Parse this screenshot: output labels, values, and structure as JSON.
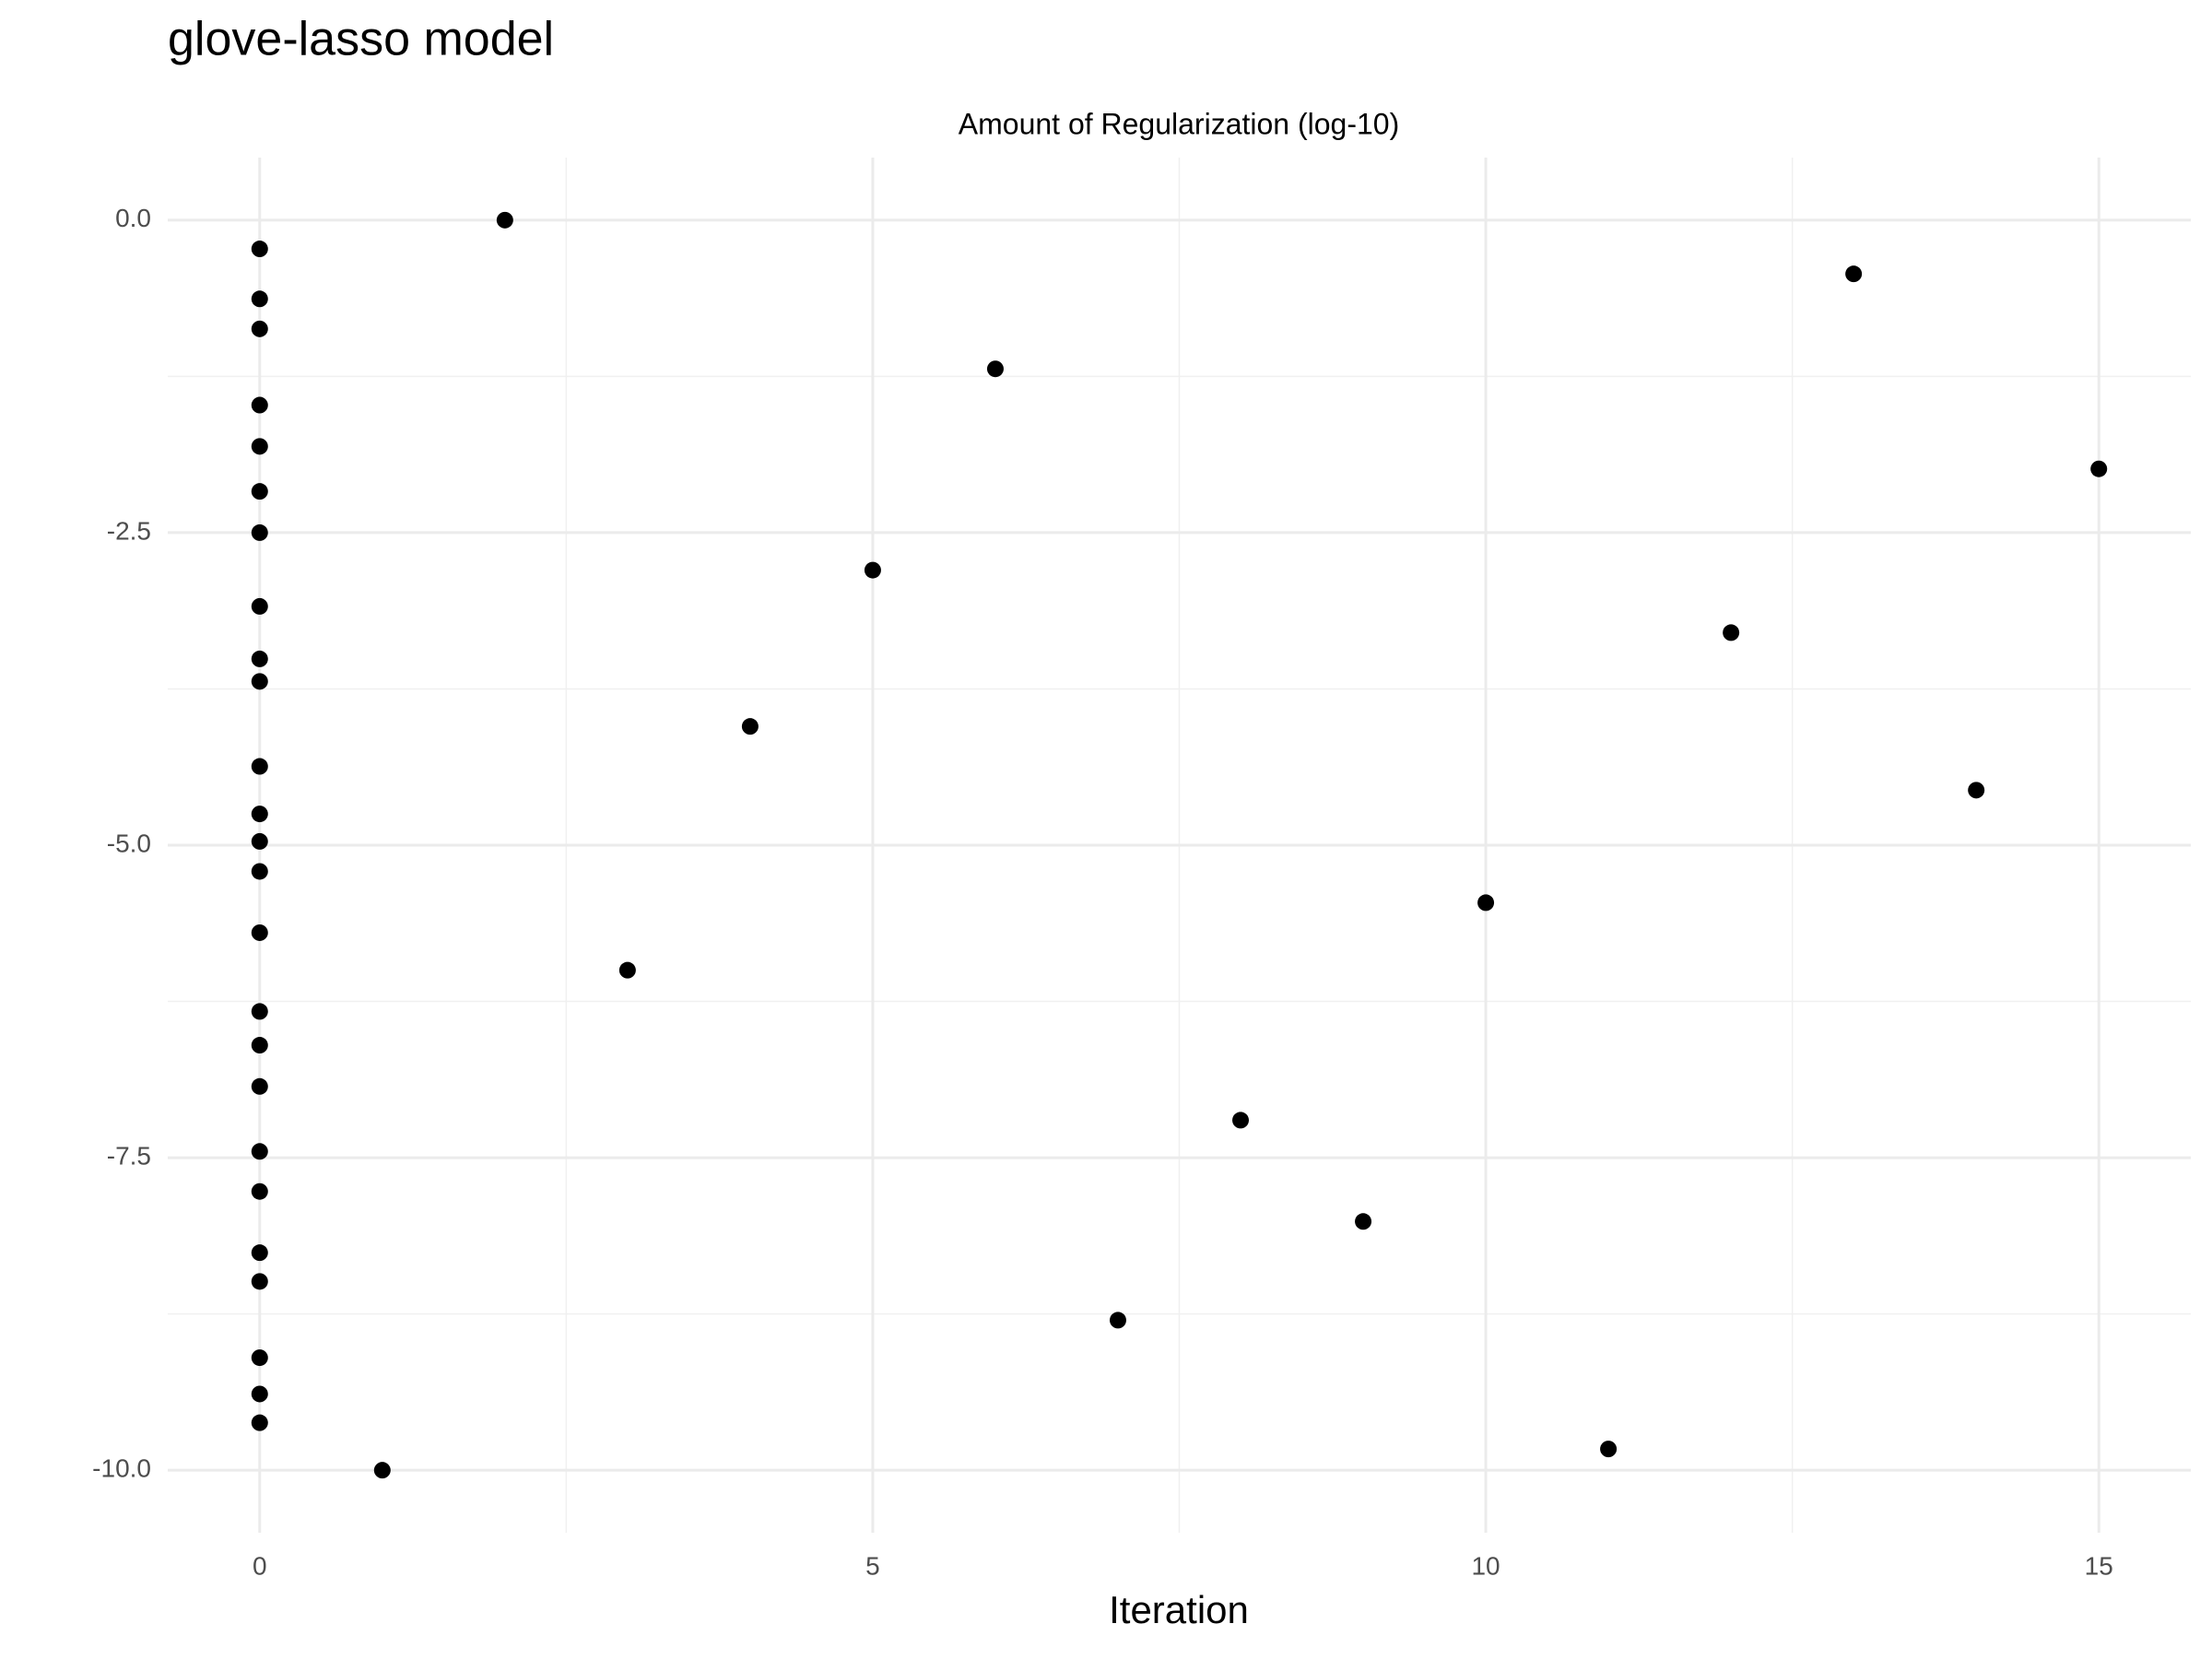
{
  "chart_data": {
    "type": "scatter",
    "title": "glove-lasso model",
    "subtitle": "Amount of Regularization (log-10)",
    "x_label": "Iteration",
    "x": [
      0,
      0,
      0,
      0,
      0,
      0,
      0,
      0,
      0,
      0,
      0,
      0,
      0,
      0,
      0,
      0,
      0,
      0,
      0,
      0,
      0,
      0,
      0,
      0,
      0,
      1,
      2,
      3,
      4,
      5,
      6,
      7,
      8,
      9,
      10,
      11,
      12,
      13,
      14,
      15
    ],
    "values": [
      -0.23,
      -0.63,
      -0.87,
      -1.48,
      -1.81,
      -2.17,
      -2.5,
      -3.09,
      -3.51,
      -3.69,
      -4.37,
      -4.75,
      -4.97,
      -5.21,
      -5.7,
      -6.33,
      -6.6,
      -6.93,
      -7.45,
      -7.77,
      -8.26,
      -8.49,
      -9.1,
      -9.39,
      -9.62,
      -10,
      0,
      -6,
      -4.05,
      -2.8,
      -1.19,
      -8.8,
      -7.2,
      -8.01,
      -5.46,
      -9.83,
      -3.3,
      -0.43,
      -4.56,
      -1.99
    ],
    "color": "#000000",
    "xlim": [
      -0.75,
      15.75
    ],
    "ylim": [
      -10.5,
      0.5
    ],
    "xticks": [
      0,
      5,
      10,
      15
    ],
    "yticks": [
      {
        "value": 0,
        "label": "0.0"
      },
      {
        "value": -2.5,
        "label": "-2.5"
      },
      {
        "value": -5,
        "label": "-5.0"
      },
      {
        "value": -7.5,
        "label": "-7.5"
      },
      {
        "value": -10,
        "label": "-10.0"
      }
    ],
    "xminor": [
      2.5,
      7.5,
      12.5
    ],
    "yminor": [
      -1.25,
      -3.75,
      -6.25,
      -8.75
    ],
    "grid": true
  }
}
